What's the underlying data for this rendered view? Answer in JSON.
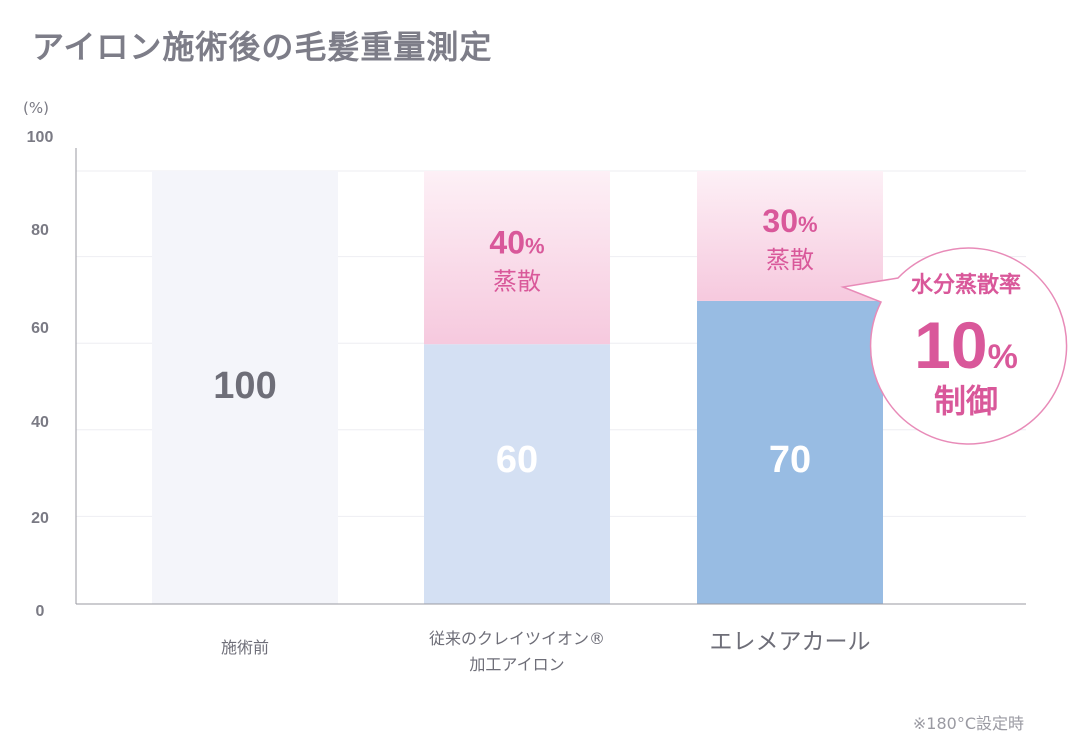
{
  "title": "アイロン施術後の毛髪重量測定",
  "footnote": "※180°C設定時",
  "callout": {
    "line1": "水分蒸散率",
    "value": "10",
    "unit": "%",
    "line3": "制御"
  },
  "colors": {
    "title": "#7d7d88",
    "axis_text": "#7a7a84",
    "bar_before": "#f4f5fa",
    "bar_conventional": "#d4e0f3",
    "bar_elemea": "#98bce3",
    "evaporation_top": "#fdf0f6",
    "evaporation_bottom": "#f6c9de",
    "pink_text": "#d9589a",
    "callout_stroke": "#e88bb8",
    "callout_text": "#d9589a",
    "value_gray": "#6e6e78",
    "value_white": "#ffffff"
  },
  "chart_data": {
    "type": "bar",
    "stacked": true,
    "categories": [
      "施術前",
      "従来のクレイツイオン®\n加工アイロン",
      "エレメアカール"
    ],
    "series": [
      {
        "values": [
          100,
          60,
          70
        ],
        "value_labels": [
          "100",
          "60",
          "70"
        ]
      },
      {
        "values": [
          0,
          40,
          30
        ],
        "value_labels": [
          "",
          "40%",
          "30%"
        ],
        "sub_label": "蒸散"
      }
    ],
    "ylabel": "(%)",
    "ylim": [
      0,
      100
    ],
    "yticks": [
      0,
      20,
      40,
      60,
      80,
      100
    ],
    "grid": true
  }
}
